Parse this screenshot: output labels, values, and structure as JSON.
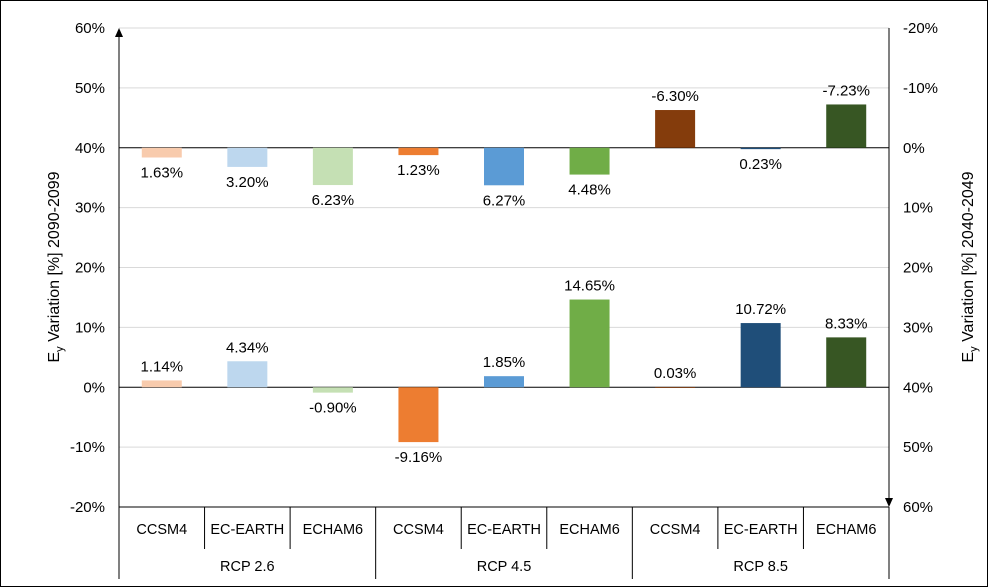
{
  "chart_data": {
    "type": "bar",
    "groups": [
      "RCP 2.6",
      "RCP 4.5",
      "RCP 8.5"
    ],
    "categories": [
      "CCSM4",
      "EC-EARTH",
      "ECHAM6",
      "CCSM4",
      "EC-EARTH",
      "ECHAM6",
      "CCSM4",
      "EC-EARTH",
      "ECHAM6"
    ],
    "left_axis": {
      "label_main": "E",
      "label_sub": "y",
      "label_rest": " Variation [%] 2090-2099",
      "ylim": [
        -20,
        60
      ],
      "ticks": [
        "60%",
        "50%",
        "40%",
        "30%",
        "20%",
        "10%",
        "0%",
        "-10%",
        "-20%"
      ]
    },
    "right_axis": {
      "label_main": "E",
      "label_sub": "y",
      "label_rest": " Variation [%] 2040-2049",
      "ylim": [
        -20,
        60
      ],
      "inverted": true,
      "ticks": [
        "-20%",
        "-10%",
        "0%",
        "10%",
        "20%",
        "30%",
        "40%",
        "50%",
        "60%"
      ]
    },
    "series": [
      {
        "axis": "left",
        "values": [
          1.14,
          4.34,
          -0.9,
          -9.16,
          1.85,
          14.65,
          0.03,
          10.72,
          8.33
        ],
        "labels": [
          "1.14%",
          "4.34%",
          "-0.90%",
          "-9.16%",
          "1.85%",
          "14.65%",
          "0.03%",
          "10.72%",
          "8.33%"
        ]
      },
      {
        "axis": "right",
        "values": [
          1.63,
          3.2,
          6.23,
          1.23,
          6.27,
          4.48,
          -6.3,
          0.23,
          -7.23
        ],
        "labels": [
          "1.63%",
          "3.20%",
          "6.23%",
          "1.23%",
          "6.27%",
          "4.48%",
          "-6.30%",
          "0.23%",
          "-7.23%"
        ]
      }
    ],
    "colors": [
      "#f8cbad",
      "#bdd7ee",
      "#c5e0b4",
      "#ed7d31",
      "#5b9bd5",
      "#70ad47",
      "#843c0c",
      "#1f4e79",
      "#375623"
    ]
  }
}
